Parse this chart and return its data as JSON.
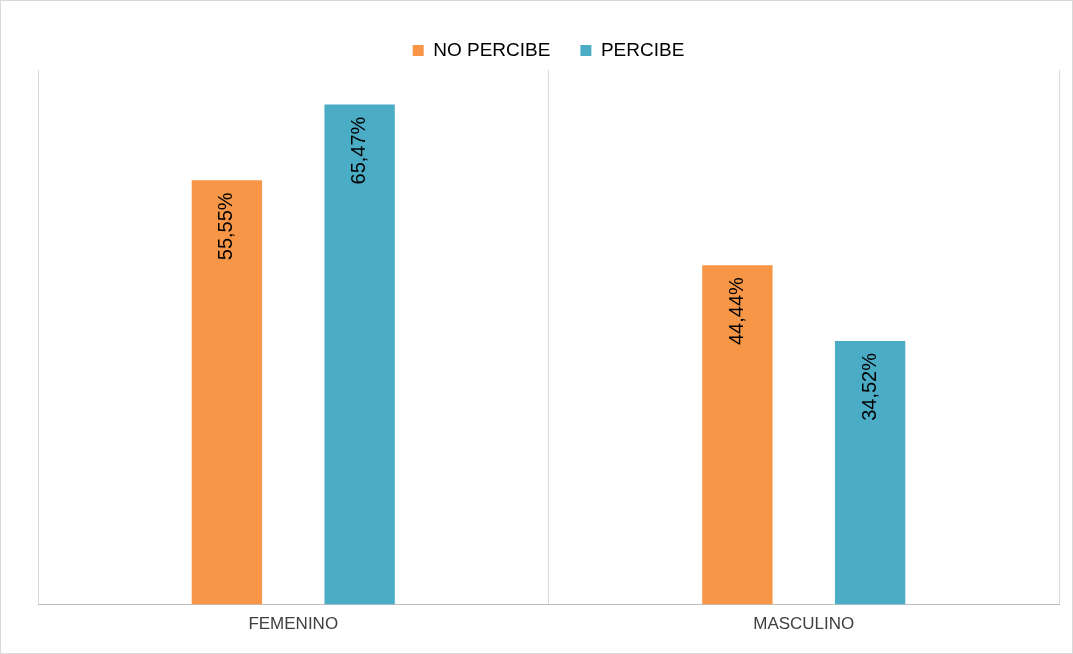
{
  "chart_data": {
    "type": "bar",
    "categories": [
      "FEMENINO",
      "MASCULINO"
    ],
    "series": [
      {
        "name": "NO PERCIBE",
        "color": "#f79646",
        "values": [
          55.55,
          44.44
        ],
        "value_labels": [
          "55,55%",
          "44,44%"
        ]
      },
      {
        "name": "PERCIBE",
        "color": "#4bacc6",
        "values": [
          65.47,
          34.52
        ],
        "value_labels": [
          "65,47%",
          "34,52%"
        ]
      }
    ],
    "ylim": [
      0,
      70
    ],
    "tick_labels": "x",
    "grid": "x",
    "legend": "top"
  }
}
